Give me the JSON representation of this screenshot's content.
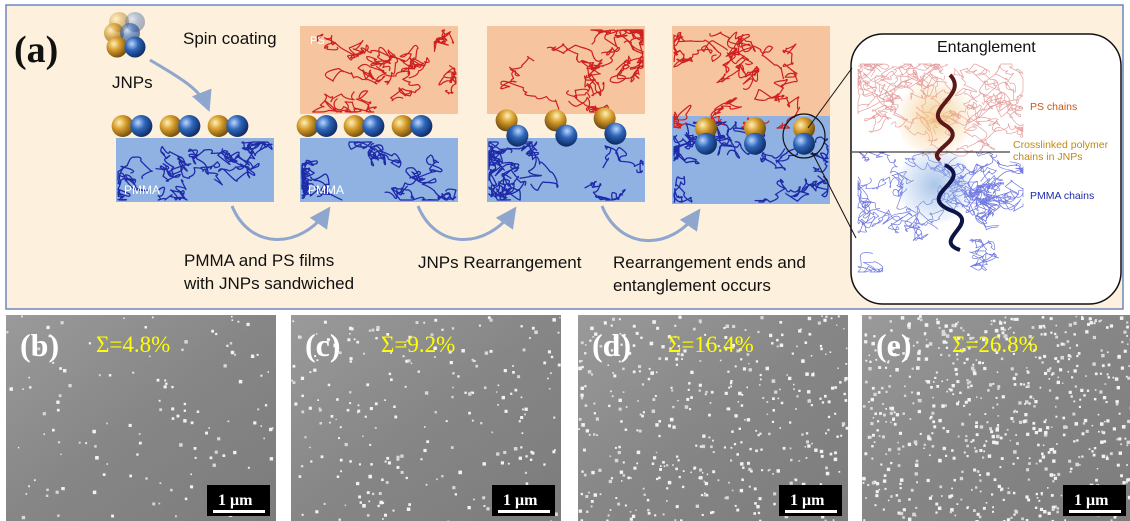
{
  "panel_a": {
    "label": "(a)",
    "spin_coating": "Spin coating",
    "jnps": "JNPs",
    "layer_pmma": "PMMA",
    "layer_ps": "PS",
    "step1_line1": "PMMA and PS films",
    "step1_line2": "with JNPs sandwiched",
    "step2": "JNPs Rearrangement",
    "step3_line1": "Rearrangement ends and",
    "step3_line2": "entanglement occurs",
    "inset": {
      "title": "Entanglement",
      "ps_chains": "PS chains",
      "crosslinked_line1": "Crosslinked polymer",
      "crosslinked_line2": "chains in JNPs",
      "pmma_chains": "PMMA chains"
    }
  },
  "sem_panels": [
    {
      "label": "(b)",
      "sigma": "Σ=4.8%",
      "scale": "1 μm",
      "density": 0.048
    },
    {
      "label": "(c)",
      "sigma": "Σ=9.2%",
      "scale": "1 μm",
      "density": 0.092
    },
    {
      "label": "(d)",
      "sigma": "Σ=16.4%",
      "scale": "1 μm",
      "density": 0.164
    },
    {
      "label": "(e)",
      "sigma": "Σ=26.8%",
      "scale": "1 μm",
      "density": 0.268
    }
  ],
  "colors": {
    "panel_bg": "#fdf0dc",
    "panel_border": "#6f86c2",
    "ps_layer": "#f6c5a0",
    "pmma_layer": "#8fb2e3",
    "ps_chain": "#cf1f1f",
    "pmma_chain": "#1f2aa8",
    "jnp_gold": "#d49a2a",
    "jnp_blue": "#2f65b8",
    "sem_label": "#ffff00",
    "arrow": "#8fa6cf"
  }
}
